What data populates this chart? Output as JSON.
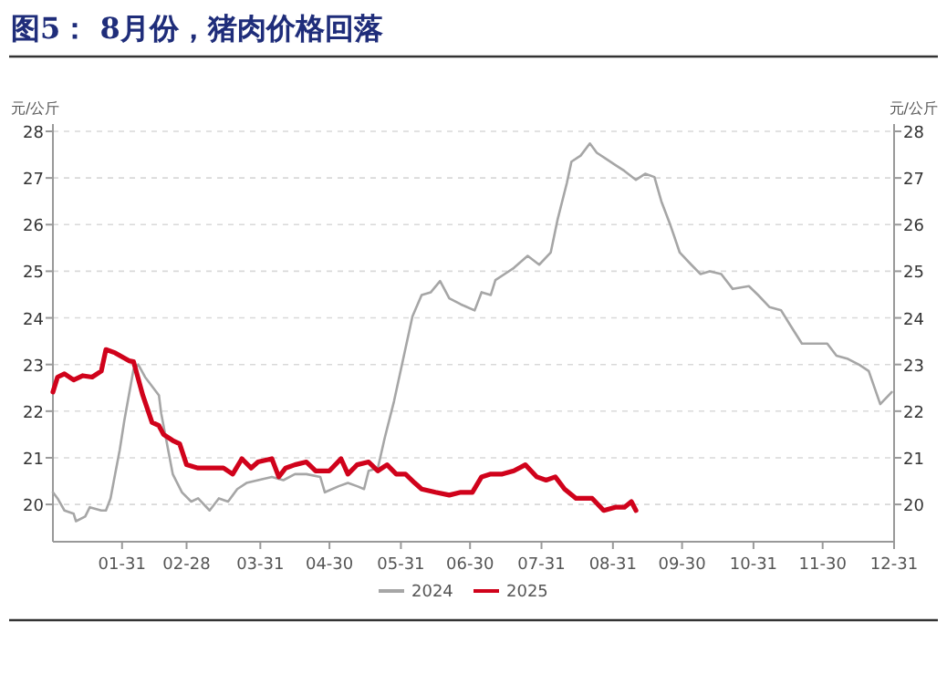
{
  "chart_data": {
    "type": "line",
    "title": "图5：  8月份，猪肉价格回落",
    "ylabel": "元/公斤",
    "y2label": "元/公斤",
    "xlim": [
      "--01-01",
      "--12-31"
    ],
    "xticks": [
      {
        "value": "--01-31",
        "label": "01-31"
      },
      {
        "value": "--02-28",
        "label": "02-28"
      },
      {
        "value": "--03-31",
        "label": "03-31"
      },
      {
        "value": "--04-30",
        "label": "04-30"
      },
      {
        "value": "--05-31",
        "label": "05-31"
      },
      {
        "value": "--06-30",
        "label": "06-30"
      },
      {
        "value": "--07-31",
        "label": "07-31"
      },
      {
        "value": "--08-31",
        "label": "08-31"
      },
      {
        "value": "--09-30",
        "label": "09-30"
      },
      {
        "value": "--10-31",
        "label": "10-31"
      },
      {
        "value": "--11-30",
        "label": "11-30"
      },
      {
        "value": "--12-31",
        "label": "12-31"
      }
    ],
    "ylim": [
      19.2,
      28
    ],
    "yticks": [
      20,
      21,
      22,
      23,
      24,
      25,
      26,
      27,
      28
    ],
    "y2lim": [
      19.2,
      28
    ],
    "y2ticks": [
      20,
      21,
      22,
      23,
      24,
      25,
      26,
      27,
      28
    ],
    "grid": "y",
    "legend": "bottom",
    "series": [
      {
        "name": "2024",
        "color": "#a6a6a6",
        "x": [
          "--01-01",
          "--01-03",
          "--01-06",
          "--01-10",
          "--01-11",
          "--01-15",
          "--01-17",
          "--01-22",
          "--01-24",
          "--01-26",
          "--01-28",
          "--01-30",
          "--02-01",
          "--02-05",
          "--02-07",
          "--02-10",
          "--02-16",
          "--02-17",
          "--02-20",
          "--02-22",
          "--02-26",
          "--03-01",
          "--03-04",
          "--03-09",
          "--03-13",
          "--03-17",
          "--03-21",
          "--03-25",
          "--03-30",
          "--04-05",
          "--04-10",
          "--04-15",
          "--04-20",
          "--04-26",
          "--04-28",
          "--05-04",
          "--05-08",
          "--05-12",
          "--05-15",
          "--05-17",
          "--05-21",
          "--05-24",
          "--05-28",
          "--06-01",
          "--06-05",
          "--06-09",
          "--06-13",
          "--06-17",
          "--06-21",
          "--06-26",
          "--07-02",
          "--07-05",
          "--07-09",
          "--07-11",
          "--07-15",
          "--07-19",
          "--07-25",
          "--07-30",
          "--08-04",
          "--08-07",
          "--08-11",
          "--08-13",
          "--08-17",
          "--08-21",
          "--08-24",
          "--08-28",
          "--09-01",
          "--09-05",
          "--09-10",
          "--09-14",
          "--09-18",
          "--09-21",
          "--09-25",
          "--09-29",
          "--10-04",
          "--10-08",
          "--10-12",
          "--10-17",
          "--10-22",
          "--10-29",
          "--11-02",
          "--11-07",
          "--11-12",
          "--11-16",
          "--11-21",
          "--11-27",
          "--12-02",
          "--12-06",
          "--12-11",
          "--12-16",
          "--12-20",
          "--12-25",
          "--12-30"
        ],
        "values": [
          20.26,
          20.13,
          19.87,
          19.8,
          19.64,
          19.74,
          19.94,
          19.87,
          19.87,
          20.13,
          20.65,
          21.17,
          21.8,
          22.9,
          23.0,
          22.73,
          22.34,
          21.95,
          21.17,
          20.65,
          20.26,
          20.06,
          20.13,
          19.87,
          20.13,
          20.06,
          20.33,
          20.46,
          20.52,
          20.59,
          20.52,
          20.65,
          20.65,
          20.59,
          20.26,
          20.39,
          20.46,
          20.39,
          20.33,
          20.72,
          20.78,
          21.43,
          22.21,
          23.12,
          24.03,
          24.49,
          24.55,
          24.79,
          24.42,
          24.29,
          24.16,
          24.55,
          24.49,
          24.81,
          24.94,
          25.07,
          25.33,
          25.14,
          25.4,
          26.11,
          26.89,
          27.35,
          27.48,
          27.74,
          27.54,
          27.41,
          27.28,
          27.15,
          26.96,
          27.09,
          27.02,
          26.5,
          25.98,
          25.4,
          25.14,
          24.94,
          25.0,
          24.94,
          24.62,
          24.68,
          24.49,
          24.23,
          24.16,
          23.84,
          23.45,
          23.45,
          23.45,
          23.19,
          23.12,
          22.99,
          22.86,
          22.15,
          22.41
        ]
      },
      {
        "name": "2025",
        "color": "#d0021b",
        "x": [
          "--01-01",
          "--01-03",
          "--01-06",
          "--01-10",
          "--01-14",
          "--01-18",
          "--01-22",
          "--01-24",
          "--01-28",
          "--02-03",
          "--02-05",
          "--02-09",
          "--02-13",
          "--02-16",
          "--02-18",
          "--02-22",
          "--02-25",
          "--02-28",
          "--03-04",
          "--03-09",
          "--03-15",
          "--03-19",
          "--03-23",
          "--03-27",
          "--03-30",
          "--04-05",
          "--04-08",
          "--04-11",
          "--04-15",
          "--04-20",
          "--04-24",
          "--04-30",
          "--05-05",
          "--05-08",
          "--05-12",
          "--05-17",
          "--05-21",
          "--05-25",
          "--05-29",
          "--06-02",
          "--06-06",
          "--06-09",
          "--06-15",
          "--06-21",
          "--06-26",
          "--06-30",
          "--07-01",
          "--07-05",
          "--07-09",
          "--07-14",
          "--07-19",
          "--07-24",
          "--07-29",
          "--08-02",
          "--08-06",
          "--08-10",
          "--08-15",
          "--08-22",
          "--08-27",
          "--09-01",
          "--09-05",
          "--09-08",
          "--09-10"
        ],
        "values": [
          22.41,
          22.73,
          22.8,
          22.67,
          22.76,
          22.73,
          22.86,
          23.32,
          23.25,
          23.08,
          23.06,
          22.34,
          21.76,
          21.69,
          21.5,
          21.37,
          21.3,
          20.85,
          20.78,
          20.78,
          20.78,
          20.65,
          20.98,
          20.78,
          20.91,
          20.98,
          20.59,
          20.78,
          20.85,
          20.91,
          20.72,
          20.72,
          20.98,
          20.65,
          20.85,
          20.91,
          20.72,
          20.85,
          20.65,
          20.65,
          20.46,
          20.33,
          20.26,
          20.2,
          20.26,
          20.26,
          20.26,
          20.59,
          20.65,
          20.65,
          20.72,
          20.85,
          20.59,
          20.52,
          20.59,
          20.33,
          20.13,
          20.13,
          19.87,
          19.94,
          19.94,
          20.06,
          19.87
        ]
      }
    ]
  }
}
